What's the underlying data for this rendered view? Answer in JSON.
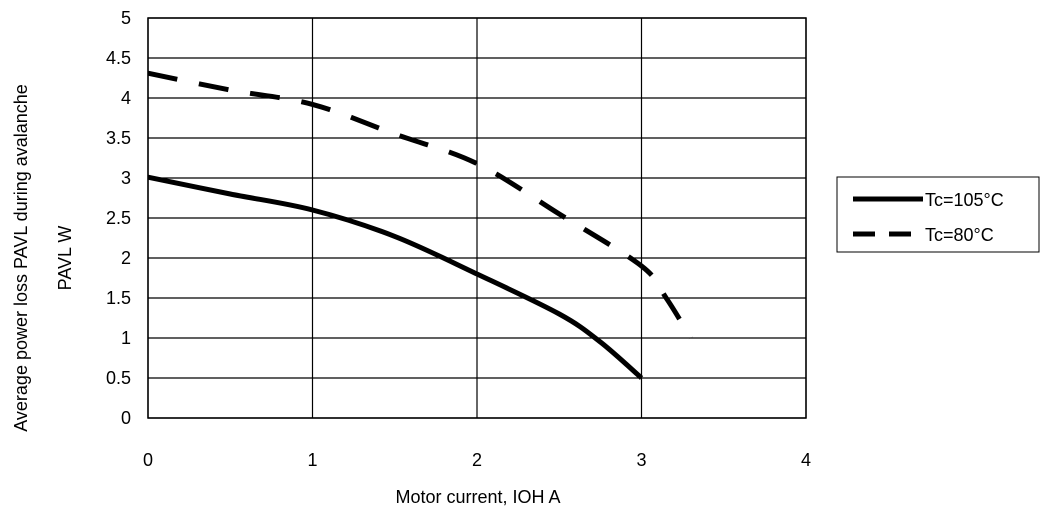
{
  "chart_data": {
    "type": "line",
    "xlabel": "Motor current, IOH A",
    "ylabel_line1": "Average power loss PAVL during avalanche",
    "ylabel_line2": "PAVL W",
    "xlim": [
      0,
      4
    ],
    "ylim": [
      0,
      5
    ],
    "x_ticks": [
      "0",
      "1",
      "2",
      "3",
      "4"
    ],
    "y_ticks": [
      "0",
      "0.5",
      "1",
      "1.5",
      "2",
      "2.5",
      "3",
      "3.5",
      "4",
      "4.5",
      "5"
    ],
    "grid": true,
    "legend_position": "right",
    "series": [
      {
        "name": "Tc=105°C",
        "style": "solid",
        "color": "#000000",
        "points": [
          [
            0,
            3.01
          ],
          [
            0.5,
            2.8
          ],
          [
            1,
            2.6
          ],
          [
            1.5,
            2.27
          ],
          [
            2,
            1.8
          ],
          [
            2.5,
            1.3
          ],
          [
            2.75,
            0.95
          ],
          [
            3,
            0.5
          ]
        ]
      },
      {
        "name": "Tc=80°C",
        "style": "dashed",
        "color": "#000000",
        "points": [
          [
            0,
            4.31
          ],
          [
            0.5,
            4.1
          ],
          [
            1,
            3.92
          ],
          [
            1.5,
            3.55
          ],
          [
            2,
            3.18
          ],
          [
            2.5,
            2.55
          ],
          [
            3,
            1.9
          ],
          [
            3.15,
            1.5
          ],
          [
            3.3,
            1.0
          ]
        ]
      }
    ]
  }
}
